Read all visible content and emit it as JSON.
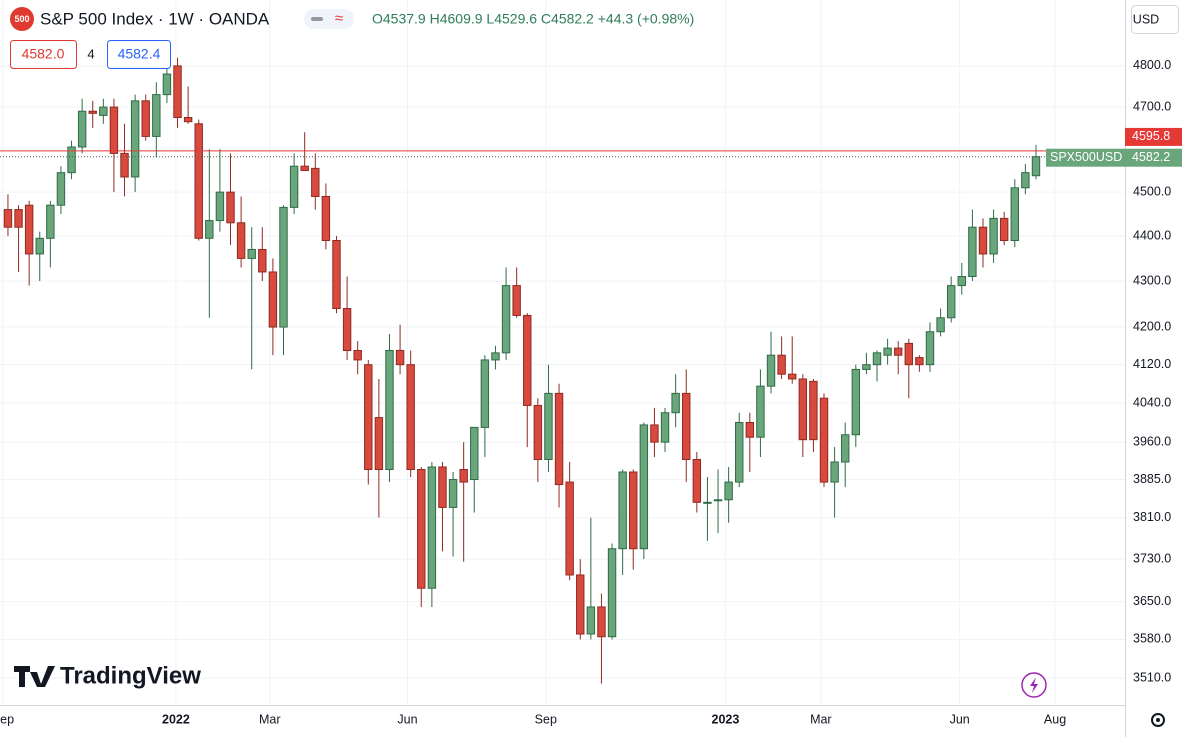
{
  "chart_data": {
    "type": "candlestick",
    "title": "S&P 500 Index · 1W · OANDA",
    "icon_text": "500",
    "ohlc_text": "O4537.9 H4609.9 L4529.6 C4582.2 +44.3 (+0.98%)",
    "bid": "4582.0",
    "spread": "4",
    "ask": "4582.4",
    "currency": "USD",
    "symbol": "SPX500USD",
    "brand": "TradingView",
    "log_scale": true,
    "grid": true,
    "up_color": "#6aa67c",
    "down_color": "#d84a3e",
    "ylim": [
      3462,
      4859
    ],
    "yticks": [
      {
        "value": 3510,
        "label": "3510.0"
      },
      {
        "value": 3580,
        "label": "3580.0"
      },
      {
        "value": 3650,
        "label": "3650.0"
      },
      {
        "value": 3730,
        "label": "3730.0"
      },
      {
        "value": 3810,
        "label": "3810.0"
      },
      {
        "value": 3885,
        "label": "3885.0"
      },
      {
        "value": 3960,
        "label": "3960.0"
      },
      {
        "value": 4040,
        "label": "4040.0"
      },
      {
        "value": 4120,
        "label": "4120.0"
      },
      {
        "value": 4200,
        "label": "4200.0"
      },
      {
        "value": 4300,
        "label": "4300.0"
      },
      {
        "value": 4400,
        "label": "4400.0"
      },
      {
        "value": 4500,
        "label": "4500.0"
      },
      {
        "value": 4700,
        "label": "4700.0"
      },
      {
        "value": 4800,
        "label": "4800.0"
      }
    ],
    "xlim": [
      -0.75,
      105.4
    ],
    "xticks": [
      {
        "value": -0.47,
        "label": "Sep"
      },
      {
        "value": 15.85,
        "label": "2022"
      },
      {
        "value": 24.7,
        "label": "Mar"
      },
      {
        "value": 37.7,
        "label": "Jun"
      },
      {
        "value": 50.75,
        "label": "Sep"
      },
      {
        "value": 67.7,
        "label": "2023"
      },
      {
        "value": 76.7,
        "label": "Mar"
      },
      {
        "value": 89.8,
        "label": "Jun"
      },
      {
        "value": 98.8,
        "label": "Aug"
      }
    ],
    "lines": [
      {
        "value": 4595.8,
        "label": "4595.8",
        "color": "#e53935"
      },
      {
        "value": 4582.2,
        "label": "4582.2",
        "color": "#6aa67c"
      }
    ],
    "open": [
      4460,
      4460,
      4470,
      4360,
      4395,
      4470,
      4545,
      4605,
      4690,
      4680,
      4700,
      4590,
      4535,
      4715,
      4630,
      4730,
      4800,
      4675,
      4660,
      4395,
      4435,
      4500,
      4430,
      4350,
      4370,
      4320,
      4200,
      4465,
      4560,
      4555,
      4490,
      4390,
      4240,
      4150,
      4120,
      4010,
      3905,
      4150,
      4120,
      3905,
      3675,
      3910,
      3830,
      3905,
      3885,
      3990,
      4130,
      4145,
      4290,
      4225,
      4035,
      3925,
      4060,
      3880,
      3700,
      3590,
      3640,
      3585,
      3750,
      3900,
      3750,
      3995,
      3960,
      4020,
      4060,
      3925,
      3840,
      3845,
      3845,
      3880,
      4000,
      3970,
      4075,
      4140,
      4100,
      4090,
      4085,
      4050,
      3880,
      3920,
      3975,
      4110,
      4120,
      4140,
      4155,
      4165,
      4135,
      4120,
      4190,
      4220,
      4290,
      4310,
      4420,
      4360,
      4440,
      4390,
      4510,
      4537.9
    ],
    "high": [
      4495,
      4470,
      4480,
      4410,
      4480,
      4560,
      4620,
      4720,
      4715,
      4720,
      4720,
      4660,
      4730,
      4730,
      4760,
      4820,
      4820,
      4750,
      4670,
      4600,
      4600,
      4590,
      4490,
      4420,
      4420,
      4350,
      4470,
      4590,
      4640,
      4590,
      4520,
      4400,
      4310,
      4170,
      4130,
      4090,
      4185,
      4205,
      4150,
      3910,
      3920,
      3920,
      3900,
      3960,
      3990,
      4140,
      4160,
      4330,
      4330,
      4230,
      4050,
      4120,
      4080,
      3920,
      3730,
      3810,
      3665,
      3760,
      3905,
      3905,
      4000,
      4030,
      4030,
      4100,
      4110,
      3940,
      3890,
      3905,
      3910,
      4020,
      4020,
      4110,
      4190,
      4180,
      4180,
      4100,
      4090,
      4060,
      3950,
      4000,
      4120,
      4145,
      4150,
      4175,
      4170,
      4175,
      4140,
      4210,
      4240,
      4310,
      4340,
      4460,
      4440,
      4460,
      4455,
      4530,
      4565,
      4609.9
    ],
    "low": [
      4400,
      4320,
      4290,
      4300,
      4330,
      4450,
      4530,
      4590,
      4650,
      4660,
      4500,
      4490,
      4500,
      4620,
      4580,
      4710,
      4650,
      4660,
      4390,
      4220,
      4410,
      4380,
      4330,
      4110,
      4300,
      4140,
      4140,
      4450,
      4550,
      4460,
      4370,
      4230,
      4130,
      4100,
      3875,
      3810,
      3880,
      4100,
      3890,
      3640,
      3640,
      3745,
      3735,
      3725,
      3820,
      3930,
      4110,
      4130,
      4220,
      3950,
      3880,
      3900,
      3830,
      3690,
      3580,
      3580,
      3500,
      3580,
      3700,
      3710,
      3730,
      3930,
      3940,
      3990,
      3880,
      3820,
      3765,
      3780,
      3800,
      3870,
      3900,
      3930,
      4060,
      4090,
      4080,
      3930,
      3940,
      3870,
      3810,
      3870,
      3950,
      4100,
      4085,
      4120,
      4100,
      4050,
      4105,
      4105,
      4180,
      4210,
      4270,
      4300,
      4330,
      4340,
      4380,
      4375,
      4495,
      4529.6
    ],
    "close": [
      4420,
      4420,
      4360,
      4395,
      4470,
      4545,
      4605,
      4690,
      4685,
      4700,
      4590,
      4535,
      4715,
      4630,
      4730,
      4780,
      4675,
      4665,
      4395,
      4435,
      4500,
      4430,
      4350,
      4370,
      4320,
      4200,
      4465,
      4560,
      4550,
      4490,
      4390,
      4240,
      4150,
      4130,
      3905,
      3905,
      4150,
      4120,
      3905,
      3675,
      3910,
      3830,
      3885,
      3880,
      3990,
      4130,
      4145,
      4290,
      4225,
      4035,
      3925,
      4060,
      3875,
      3700,
      3590,
      3640,
      3585,
      3750,
      3900,
      3750,
      3995,
      3960,
      4020,
      4060,
      3925,
      3840,
      3840,
      3845,
      3880,
      4000,
      3970,
      4075,
      4140,
      4100,
      4090,
      3965,
      3965,
      3880,
      3920,
      3975,
      4110,
      4120,
      4145,
      4155,
      4140,
      4120,
      4120,
      4190,
      4220,
      4290,
      4310,
      4420,
      4360,
      4440,
      4390,
      4510,
      4545,
      4582.2
    ]
  }
}
